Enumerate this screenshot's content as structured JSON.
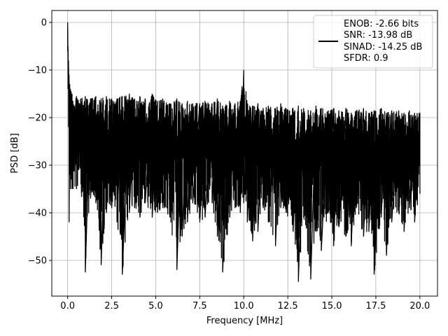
{
  "chart_data": {
    "type": "line",
    "title": "",
    "xlabel": "Frequency [MHz]",
    "ylabel": "PSD [dB]",
    "xlim": [
      -0.9,
      21.0
    ],
    "ylim": [
      -57.5,
      2.5
    ],
    "xticks": [
      0.0,
      2.5,
      5.0,
      7.5,
      10.0,
      12.5,
      15.0,
      17.5,
      20.0
    ],
    "xtick_labels": [
      "0.0",
      "2.5",
      "5.0",
      "7.5",
      "10.0",
      "12.5",
      "15.0",
      "17.5",
      "20.0"
    ],
    "yticks": [
      0,
      -10,
      -20,
      -30,
      -40,
      -50
    ],
    "ytick_labels": [
      "0",
      "−10",
      "−20",
      "−30",
      "−40",
      "−50"
    ],
    "grid": true,
    "legend_position": "top-right",
    "series_color": "#000000",
    "legend_lines": [
      "ENOB: -2.66 bits",
      "SNR: -13.98 dB",
      "SINAD: -14.25 dB",
      "SFDR: 0.9"
    ],
    "series": [
      {
        "x": [
          0.0,
          0.02,
          0.05,
          0.08,
          0.12,
          0.16,
          0.2,
          0.25,
          0.5,
          0.75,
          1.0,
          1.3,
          1.6,
          1.9,
          2.2,
          2.5,
          2.8,
          3.1,
          3.5,
          3.8,
          4.1,
          4.4,
          4.8,
          5.1,
          5.4,
          5.8,
          6.2,
          6.5,
          6.8,
          7.1,
          7.5,
          7.8,
          8.2,
          8.5,
          8.8,
          9.2,
          9.5,
          9.8,
          10.0,
          10.2,
          10.5,
          10.8,
          11.1,
          11.4,
          11.8,
          12.1,
          12.4,
          12.8,
          13.1,
          13.4,
          13.8,
          14.1,
          14.4,
          14.8,
          15.1,
          15.4,
          15.8,
          16.1,
          16.4,
          16.8,
          17.1,
          17.4,
          17.8,
          18.1,
          18.4,
          18.8,
          19.1,
          19.4,
          19.7,
          20.0
        ],
        "y_upper": [
          0.0,
          -5.0,
          -8.0,
          -11.0,
          -13.0,
          -14.0,
          -14.5,
          -15.0,
          -15.5,
          -16.0,
          -15.5,
          -16.0,
          -15.5,
          -16.0,
          -15.5,
          -16.0,
          -16.0,
          -15.5,
          -15.0,
          -16.0,
          -15.5,
          -16.0,
          -15.0,
          -16.5,
          -16.0,
          -17.0,
          -16.0,
          -17.0,
          -16.5,
          -17.0,
          -17.0,
          -16.5,
          -17.0,
          -16.0,
          -17.5,
          -16.5,
          -17.0,
          -16.5,
          -10.0,
          -17.0,
          -17.5,
          -17.0,
          -18.0,
          -17.5,
          -18.0,
          -17.0,
          -18.0,
          -18.0,
          -17.5,
          -18.0,
          -18.5,
          -17.5,
          -18.0,
          -18.5,
          -18.0,
          -18.5,
          -18.0,
          -19.0,
          -18.5,
          -18.0,
          -19.0,
          -18.5,
          -18.0,
          -19.0,
          -18.5,
          -18.5,
          -19.0,
          -18.5,
          -19.0,
          -19.0
        ],
        "y_lower": [
          -6.0,
          -14.0,
          -22.0,
          -42.0,
          -32.0,
          -35.0,
          -33.0,
          -35.0,
          -35.0,
          -34.0,
          -52.5,
          -37.0,
          -38.0,
          -51.0,
          -40.0,
          -39.0,
          -42.0,
          -53.0,
          -40.0,
          -39.0,
          -41.0,
          -38.0,
          -41.0,
          -40.0,
          -39.0,
          -41.0,
          -52.0,
          -45.0,
          -42.0,
          -38.0,
          -42.0,
          -41.0,
          -38.0,
          -45.0,
          -52.5,
          -41.0,
          -39.0,
          -40.0,
          -38.0,
          -42.0,
          -46.0,
          -44.0,
          -39.0,
          -42.0,
          -47.0,
          -39.0,
          -40.0,
          -44.0,
          -54.5,
          -41.0,
          -54.0,
          -44.0,
          -48.0,
          -40.0,
          -47.0,
          -43.0,
          -45.0,
          -47.0,
          -39.0,
          -45.0,
          -44.0,
          -53.0,
          -41.0,
          -49.0,
          -42.0,
          -40.0,
          -44.0,
          -39.0,
          -42.0,
          -36.0
        ]
      }
    ]
  }
}
